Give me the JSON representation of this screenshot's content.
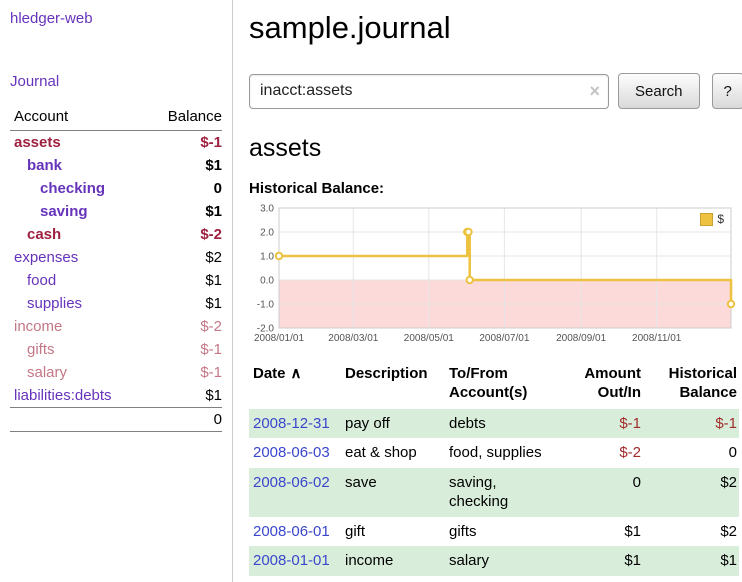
{
  "app": {
    "title": "hledger-web"
  },
  "colors": {
    "link_purple": "#6633bb",
    "negative_strong": "#9e2140",
    "negative_light": "#c47786",
    "date_blue": "#3a46cc",
    "amount_red": "#a22c2c",
    "row_green": "#d9eeda"
  },
  "sidebar": {
    "nav_journal": "Journal",
    "table": {
      "col_account": "Account",
      "col_balance": "Balance",
      "rows": [
        {
          "name": "assets",
          "balance": "$-1",
          "indent": 0,
          "bold": true,
          "negative": true,
          "light": false
        },
        {
          "name": "bank",
          "balance": "$1",
          "indent": 1,
          "bold": true,
          "negative": false,
          "light": false
        },
        {
          "name": "checking",
          "balance": "0",
          "indent": 2,
          "bold": true,
          "negative": false,
          "light": false
        },
        {
          "name": "saving",
          "balance": "$1",
          "indent": 2,
          "bold": true,
          "negative": false,
          "light": false
        },
        {
          "name": "cash",
          "balance": "$-2",
          "indent": 1,
          "bold": true,
          "negative": true,
          "light": false
        },
        {
          "name": "expenses",
          "balance": "$2",
          "indent": 0,
          "bold": false,
          "negative": false,
          "light": false
        },
        {
          "name": "food",
          "balance": "$1",
          "indent": 1,
          "bold": false,
          "negative": false,
          "light": false
        },
        {
          "name": "supplies",
          "balance": "$1",
          "indent": 1,
          "bold": false,
          "negative": false,
          "light": false
        },
        {
          "name": "income",
          "balance": "$-2",
          "indent": 0,
          "bold": false,
          "negative": true,
          "light": true
        },
        {
          "name": "gifts",
          "balance": "$-1",
          "indent": 1,
          "bold": false,
          "negative": true,
          "light": true
        },
        {
          "name": "salary",
          "balance": "$-1",
          "indent": 1,
          "bold": false,
          "negative": true,
          "light": true
        },
        {
          "name": "liabilities:debts",
          "balance": "$1",
          "indent": 0,
          "bold": false,
          "negative": false,
          "light": false
        }
      ],
      "total": "0"
    }
  },
  "main": {
    "title": "sample.journal",
    "search": {
      "value": "inacct:assets",
      "clear_icon": "×",
      "button_label": "Search",
      "help_label": "?"
    },
    "section_title": "assets"
  },
  "chart_data": {
    "type": "line",
    "title": "Historical Balance:",
    "step": "after",
    "grid": true,
    "legend_position": "top-right",
    "ylim": [
      -2,
      3
    ],
    "y_ticks": [
      3,
      2,
      1,
      0,
      -1,
      -2
    ],
    "y_tick_labels": [
      "3.0",
      "2.0",
      "1.0",
      "0.0",
      "-1.0",
      "-2.0"
    ],
    "x_range_days": [
      0,
      365
    ],
    "x_tick_days": [
      0,
      60,
      121,
      182,
      244,
      305
    ],
    "x_tick_labels": [
      "2008/01/01",
      "2008/03/01",
      "2008/05/01",
      "2008/07/01",
      "2008/09/01",
      "2008/11/01"
    ],
    "negative_region_color": "#fcdada",
    "series": [
      {
        "name": "$",
        "color": "#edc240",
        "points": [
          {
            "date": "2008-01-01",
            "day": 0,
            "value": 1
          },
          {
            "date": "2008-06-01",
            "day": 152,
            "value": 2
          },
          {
            "date": "2008-06-02",
            "day": 153,
            "value": 2
          },
          {
            "date": "2008-06-03",
            "day": 154,
            "value": 0
          },
          {
            "date": "2008-12-31",
            "day": 365,
            "value": -1
          }
        ]
      }
    ]
  },
  "register": {
    "sort_icon": "∧",
    "columns": [
      {
        "label": "Date"
      },
      {
        "label": "Description"
      },
      {
        "label": "To/From Account(s)"
      },
      {
        "label": "Amount Out/In"
      },
      {
        "label": "Historical Balance"
      }
    ],
    "rows": [
      {
        "date": "2008-12-31",
        "description": "pay off",
        "accounts": "debts",
        "amount": "$-1",
        "balance": "$-1",
        "shaded": true
      },
      {
        "date": "2008-06-03",
        "description": "eat & shop",
        "accounts": "food, supplies",
        "amount": "$-2",
        "balance": "0",
        "shaded": false
      },
      {
        "date": "2008-06-02",
        "description": "save",
        "accounts": "saving, checking",
        "amount": "0",
        "balance": "$2",
        "shaded": true
      },
      {
        "date": "2008-06-01",
        "description": "gift",
        "accounts": "gifts",
        "amount": "$1",
        "balance": "$2",
        "shaded": false
      },
      {
        "date": "2008-01-01",
        "description": "income",
        "accounts": "salary",
        "amount": "$1",
        "balance": "$1",
        "shaded": true
      }
    ]
  }
}
